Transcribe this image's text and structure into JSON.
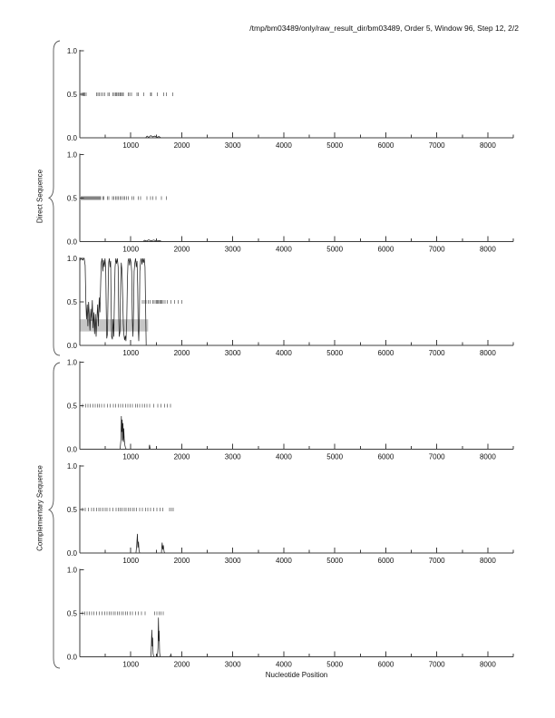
{
  "chart_data": {
    "type": "line",
    "title": "/tmp/bm03489/only/raw_result_dir/bm03489, Order 5, Window 96, Step 12, 2/2",
    "xlabel": "Nucleotide Position",
    "x_range": [
      0,
      8500
    ],
    "x_major_ticks": [
      1000,
      2000,
      3000,
      4000,
      5000,
      6000,
      7000,
      8000
    ],
    "x_minor_step": 500,
    "y_range": [
      0,
      1
    ],
    "y_ticks": [
      0.0,
      0.5,
      1.0
    ],
    "y_tick_labels": [
      "0.0",
      "0.5",
      "1.0"
    ],
    "group_labels": [
      "Direct Sequence",
      "Complementary Sequence"
    ],
    "marker_y": 0.5,
    "legend": "none",
    "grid": false,
    "colors": {
      "curve": "#222222",
      "marker": "#848484",
      "band": "#c6c6c6",
      "axis": "#3c3c3c",
      "text": "#111111",
      "brace": "#555555"
    },
    "panels": [
      {
        "name": "direct-frame-1",
        "group": "Direct Sequence",
        "markers": [
          40,
          60,
          80,
          100,
          125,
          330,
          355,
          380,
          420,
          450,
          485,
          550,
          580,
          645,
          675,
          700,
          722,
          744,
          766,
          788,
          810,
          832,
          854,
          950,
          980,
          1010,
          1120,
          1145,
          1255,
          1385,
          1405,
          1520,
          1645,
          1700,
          1820
        ],
        "curve": [
          [
            0,
            0
          ],
          [
            1290,
            0
          ],
          [
            1320,
            0.02
          ],
          [
            1350,
            0.005
          ],
          [
            1390,
            0.025
          ],
          [
            1430,
            0.01
          ],
          [
            1470,
            0.02
          ],
          [
            1510,
            0.005
          ],
          [
            1550,
            0.015
          ],
          [
            1590,
            0
          ],
          [
            8500,
            0
          ]
        ]
      },
      {
        "name": "direct-frame-2",
        "group": "Direct Sequence",
        "markers": [
          30,
          45,
          60,
          75,
          90,
          105,
          120,
          135,
          150,
          165,
          180,
          195,
          210,
          225,
          240,
          255,
          270,
          285,
          300,
          315,
          330,
          345,
          360,
          375,
          390,
          405,
          455,
          475,
          545,
          570,
          640,
          665,
          700,
          728,
          752,
          790,
          820,
          852,
          880,
          912,
          950,
          1020,
          1060,
          1150,
          1190,
          1320,
          1390,
          1430,
          1490,
          1600,
          1700
        ],
        "curve": [
          [
            0,
            0
          ],
          [
            1240,
            0
          ],
          [
            1270,
            0.015
          ],
          [
            1310,
            0.005
          ],
          [
            1350,
            0.02
          ],
          [
            1400,
            0.008
          ],
          [
            1450,
            0.018
          ],
          [
            1500,
            0.005
          ],
          [
            1560,
            0.012
          ],
          [
            1610,
            0
          ],
          [
            8500,
            0
          ]
        ]
      },
      {
        "name": "direct-frame-3",
        "group": "Direct Sequence",
        "band": {
          "x": [
            0,
            1340
          ],
          "y": [
            0.16,
            0.3
          ]
        },
        "markers": [
          1230,
          1260,
          1300,
          1340,
          1380,
          1430,
          1460,
          1490,
          1510,
          1530,
          1550,
          1570,
          1590,
          1610,
          1640,
          1670,
          1720,
          1790,
          1860,
          1930,
          2000
        ],
        "curve": [
          [
            0,
            0.97
          ],
          [
            25,
            1
          ],
          [
            55,
            0.98
          ],
          [
            85,
            1
          ],
          [
            105,
            0.92
          ],
          [
            120,
            0.5
          ],
          [
            132,
            0.3
          ],
          [
            145,
            0.47
          ],
          [
            158,
            0.22
          ],
          [
            172,
            0.5
          ],
          [
            186,
            0.33
          ],
          [
            200,
            0.17
          ],
          [
            215,
            0.42
          ],
          [
            230,
            0.28
          ],
          [
            245,
            0.52
          ],
          [
            260,
            0.2
          ],
          [
            275,
            0.38
          ],
          [
            290,
            0.13
          ],
          [
            305,
            0.36
          ],
          [
            320,
            0.1
          ],
          [
            335,
            0.3
          ],
          [
            350,
            0.47
          ],
          [
            365,
            0.22
          ],
          [
            380,
            0.55
          ],
          [
            395,
            0.38
          ],
          [
            410,
            0.75
          ],
          [
            422,
            0.95
          ],
          [
            438,
            1
          ],
          [
            452,
            0.85
          ],
          [
            465,
            0.98
          ],
          [
            480,
            0.9
          ],
          [
            495,
            1
          ],
          [
            508,
            0.88
          ],
          [
            518,
            0.45
          ],
          [
            528,
            0.08
          ],
          [
            542,
            0.13
          ],
          [
            554,
            0.6
          ],
          [
            566,
            0.95
          ],
          [
            580,
            1
          ],
          [
            594,
            0.9
          ],
          [
            604,
            0.97
          ],
          [
            614,
            0.5
          ],
          [
            624,
            0.1
          ],
          [
            638,
            0.07
          ],
          [
            652,
            0.3
          ],
          [
            666,
            0.1
          ],
          [
            680,
            0.55
          ],
          [
            692,
            0.9
          ],
          [
            706,
            1
          ],
          [
            720,
            0.94
          ],
          [
            736,
            1
          ],
          [
            752,
            0.9
          ],
          [
            762,
            0.32
          ],
          [
            774,
            0.1
          ],
          [
            788,
            0.16
          ],
          [
            800,
            0.7
          ],
          [
            812,
            0.95
          ],
          [
            828,
            0.85
          ],
          [
            842,
            0.5
          ],
          [
            854,
            0.25
          ],
          [
            866,
            0.12
          ],
          [
            878,
            0.06
          ],
          [
            892,
            0.11
          ],
          [
            906,
            0.05
          ],
          [
            922,
            0.3
          ],
          [
            934,
            0.75
          ],
          [
            946,
            0.97
          ],
          [
            960,
            1
          ],
          [
            974,
            0.92
          ],
          [
            988,
            1
          ],
          [
            1004,
            0.95
          ],
          [
            1018,
            0.85
          ],
          [
            1030,
            0.3
          ],
          [
            1042,
            0.1
          ],
          [
            1054,
            0.42
          ],
          [
            1066,
            0.85
          ],
          [
            1080,
            0.95
          ],
          [
            1094,
            1
          ],
          [
            1108,
            0.9
          ],
          [
            1122,
            0.97
          ],
          [
            1134,
            0.68
          ],
          [
            1146,
            0.2
          ],
          [
            1156,
            0.05
          ],
          [
            1168,
            0.32
          ],
          [
            1178,
            0.85
          ],
          [
            1192,
            0.97
          ],
          [
            1206,
            1
          ],
          [
            1220,
            0.93
          ],
          [
            1236,
            1
          ],
          [
            1250,
            0.95
          ],
          [
            1264,
            1
          ],
          [
            1278,
            0.9
          ],
          [
            1288,
            0.55
          ],
          [
            1296,
            0.2
          ],
          [
            1302,
            0
          ],
          [
            8500,
            0
          ]
        ]
      },
      {
        "name": "complementary-frame-1",
        "group": "Complementary Sequence",
        "markers": [
          55,
          120,
          160,
          205,
          260,
          300,
          345,
          385,
          425,
          480,
          540,
          600,
          660,
          705,
          760,
          800,
          845,
          900,
          940,
          990,
          1030,
          1090,
          1130,
          1175,
          1230,
          1270,
          1315,
          1370,
          1450,
          1530,
          1590,
          1660,
          1720,
          1780
        ],
        "curve": [
          [
            0,
            0
          ],
          [
            790,
            0
          ],
          [
            805,
            0.1
          ],
          [
            815,
            0.38
          ],
          [
            822,
            0.2
          ],
          [
            830,
            0.34
          ],
          [
            838,
            0.1
          ],
          [
            846,
            0.3
          ],
          [
            854,
            0.08
          ],
          [
            862,
            0.24
          ],
          [
            872,
            0.12
          ],
          [
            882,
            0.05
          ],
          [
            895,
            0.02
          ],
          [
            910,
            0
          ],
          [
            1355,
            0
          ],
          [
            1368,
            0.05
          ],
          [
            1382,
            0
          ],
          [
            8500,
            0
          ]
        ]
      },
      {
        "name": "complementary-frame-2",
        "group": "Complementary Sequence",
        "markers": [
          55,
          110,
          170,
          230,
          275,
          330,
          370,
          410,
          450,
          495,
          535,
          590,
          650,
          710,
          755,
          790,
          830,
          870,
          910,
          950,
          990,
          1030,
          1070,
          1115,
          1170,
          1230,
          1290,
          1335,
          1390,
          1450,
          1510,
          1570,
          1630,
          1760,
          1795,
          1830
        ],
        "curve": [
          [
            0,
            0
          ],
          [
            1100,
            0
          ],
          [
            1115,
            0.08
          ],
          [
            1130,
            0.22
          ],
          [
            1140,
            0.06
          ],
          [
            1150,
            0.13
          ],
          [
            1162,
            0.03
          ],
          [
            1175,
            0
          ],
          [
            1600,
            0
          ],
          [
            1615,
            0.12
          ],
          [
            1625,
            0.04
          ],
          [
            1638,
            0.09
          ],
          [
            1652,
            0.02
          ],
          [
            1665,
            0
          ],
          [
            8500,
            0
          ]
        ]
      },
      {
        "name": "complementary-frame-3",
        "group": "Complementary Sequence",
        "markers": [
          55,
          100,
          145,
          185,
          230,
          280,
          330,
          380,
          440,
          485,
          530,
          575,
          615,
          655,
          695,
          735,
          775,
          815,
          855,
          895,
          935,
          985,
          1030,
          1090,
          1150,
          1210,
          1280,
          1470,
          1515,
          1555,
          1595,
          1635
        ],
        "curve": [
          [
            0,
            0
          ],
          [
            1390,
            0
          ],
          [
            1400,
            0.06
          ],
          [
            1412,
            0.31
          ],
          [
            1420,
            0.12
          ],
          [
            1428,
            0.22
          ],
          [
            1436,
            0.04
          ],
          [
            1450,
            0
          ],
          [
            1520,
            0
          ],
          [
            1532,
            0.1
          ],
          [
            1542,
            0.45
          ],
          [
            1550,
            0.18
          ],
          [
            1556,
            0.3
          ],
          [
            1564,
            0.05
          ],
          [
            1575,
            0
          ],
          [
            1770,
            0
          ],
          [
            1785,
            0.03
          ],
          [
            1800,
            0
          ],
          [
            8500,
            0
          ]
        ]
      }
    ]
  }
}
